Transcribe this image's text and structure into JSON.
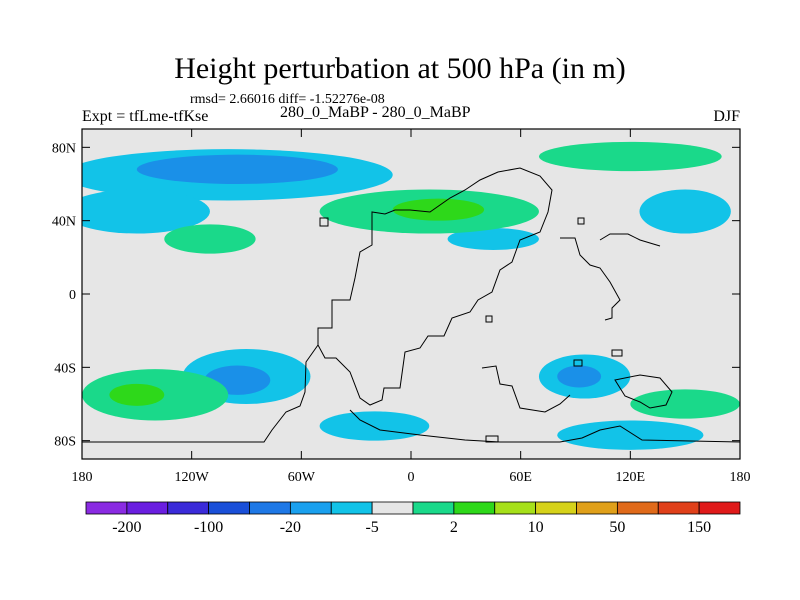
{
  "chart_data": {
    "type": "contour-map",
    "title": "Height perturbation at 500 hPa (in m)",
    "subtitle": "rmsd= 2.66016 diff= -1.52276e-08",
    "left_label": "Expt = tfLme-tfKse",
    "center_label": "280_0_MaBP - 280_0_MaBP",
    "right_label": "DJF",
    "xlim": [
      -180,
      180
    ],
    "ylim": [
      -90,
      90
    ],
    "x_ticks": [
      {
        "value": -180,
        "label": "180"
      },
      {
        "value": -120,
        "label": "120W"
      },
      {
        "value": -60,
        "label": "60W"
      },
      {
        "value": 0,
        "label": "0"
      },
      {
        "value": 60,
        "label": "60E"
      },
      {
        "value": 120,
        "label": "120E"
      },
      {
        "value": 180,
        "label": "180"
      }
    ],
    "y_ticks": [
      {
        "value": 80,
        "label": "80N"
      },
      {
        "value": 40,
        "label": "40N"
      },
      {
        "value": 0,
        "label": "0"
      },
      {
        "value": -40,
        "label": "40S"
      },
      {
        "value": -80,
        "label": "80S"
      }
    ],
    "colorbar": {
      "colors": [
        "#8a2be2",
        "#6a1ee0",
        "#3b2bd9",
        "#1a4fd8",
        "#1e78e6",
        "#1aa0ee",
        "#12c3e8",
        "#e6e6e6",
        "#1ad98a",
        "#2ed81a",
        "#a6e01a",
        "#d6d21a",
        "#e0a01a",
        "#e06a1a",
        "#e0401a",
        "#e01a1a"
      ],
      "labels": [
        "-200",
        "-100",
        "-20",
        "-5",
        "2",
        "10",
        "50",
        "150"
      ],
      "label_at_boundaries": [
        1,
        3,
        5,
        7,
        9,
        11,
        13,
        15
      ]
    },
    "regions": [
      {
        "level": "-5",
        "center": [
          -100,
          65
        ],
        "size": [
          90,
          14
        ]
      },
      {
        "level": "-20",
        "center": [
          -95,
          68
        ],
        "size": [
          55,
          8
        ]
      },
      {
        "level": "-5",
        "center": [
          -150,
          45
        ],
        "size": [
          40,
          12
        ]
      },
      {
        "level": "-5",
        "center": [
          150,
          45
        ],
        "size": [
          25,
          12
        ]
      },
      {
        "level": "-5",
        "center": [
          45,
          30
        ],
        "size": [
          25,
          6
        ]
      },
      {
        "level": "-5",
        "center": [
          -90,
          -45
        ],
        "size": [
          35,
          15
        ]
      },
      {
        "level": "-20",
        "center": [
          -95,
          -47
        ],
        "size": [
          18,
          8
        ]
      },
      {
        "level": "-5",
        "center": [
          95,
          -45
        ],
        "size": [
          25,
          12
        ]
      },
      {
        "level": "-20",
        "center": [
          92,
          -45
        ],
        "size": [
          12,
          6
        ]
      },
      {
        "level": "-5",
        "center": [
          -20,
          -72
        ],
        "size": [
          30,
          8
        ]
      },
      {
        "level": "-5",
        "center": [
          120,
          -77
        ],
        "size": [
          40,
          8
        ]
      },
      {
        "level": "2",
        "center": [
          10,
          45
        ],
        "size": [
          60,
          12
        ]
      },
      {
        "level": "10",
        "center": [
          15,
          46
        ],
        "size": [
          25,
          6
        ]
      },
      {
        "level": "2",
        "center": [
          -110,
          30
        ],
        "size": [
          25,
          8
        ]
      },
      {
        "level": "2",
        "center": [
          -140,
          -55
        ],
        "size": [
          40,
          14
        ]
      },
      {
        "level": "10",
        "center": [
          -150,
          -55
        ],
        "size": [
          15,
          6
        ]
      },
      {
        "level": "2",
        "center": [
          120,
          75
        ],
        "size": [
          50,
          8
        ]
      },
      {
        "level": "2",
        "center": [
          150,
          -60
        ],
        "size": [
          30,
          8
        ]
      }
    ]
  }
}
